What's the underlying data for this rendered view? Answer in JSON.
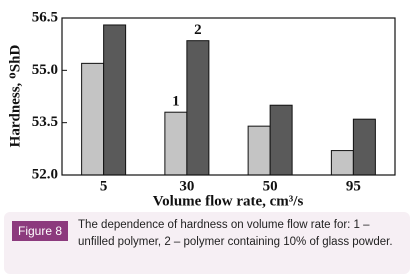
{
  "chart_data": {
    "type": "bar",
    "ylabel": "Hardness, ᴼShD",
    "xlabel": "Volume flow rate, cm³/s",
    "categories": [
      "5",
      "30",
      "50",
      "95"
    ],
    "series": [
      {
        "name": "1",
        "color": "#c4c4c4",
        "values": [
          55.2,
          53.8,
          53.4,
          52.7
        ]
      },
      {
        "name": "2",
        "color": "#5a5a5a",
        "values": [
          56.3,
          55.85,
          54.0,
          53.6
        ]
      }
    ],
    "ylim": [
      52.0,
      56.5
    ],
    "yticks": [
      {
        "value": 52.0,
        "label": "52.0"
      },
      {
        "value": 53.5,
        "label": "53.5"
      },
      {
        "value": 55.0,
        "label": "55.0"
      },
      {
        "value": 56.5,
        "label": "56.5"
      }
    ]
  },
  "caption": {
    "label": "Figure 8",
    "text": "The dependence of hardness on volume flow rate for: 1 – unfilled polymer, 2 – polymer containing 10% of glass powder."
  }
}
